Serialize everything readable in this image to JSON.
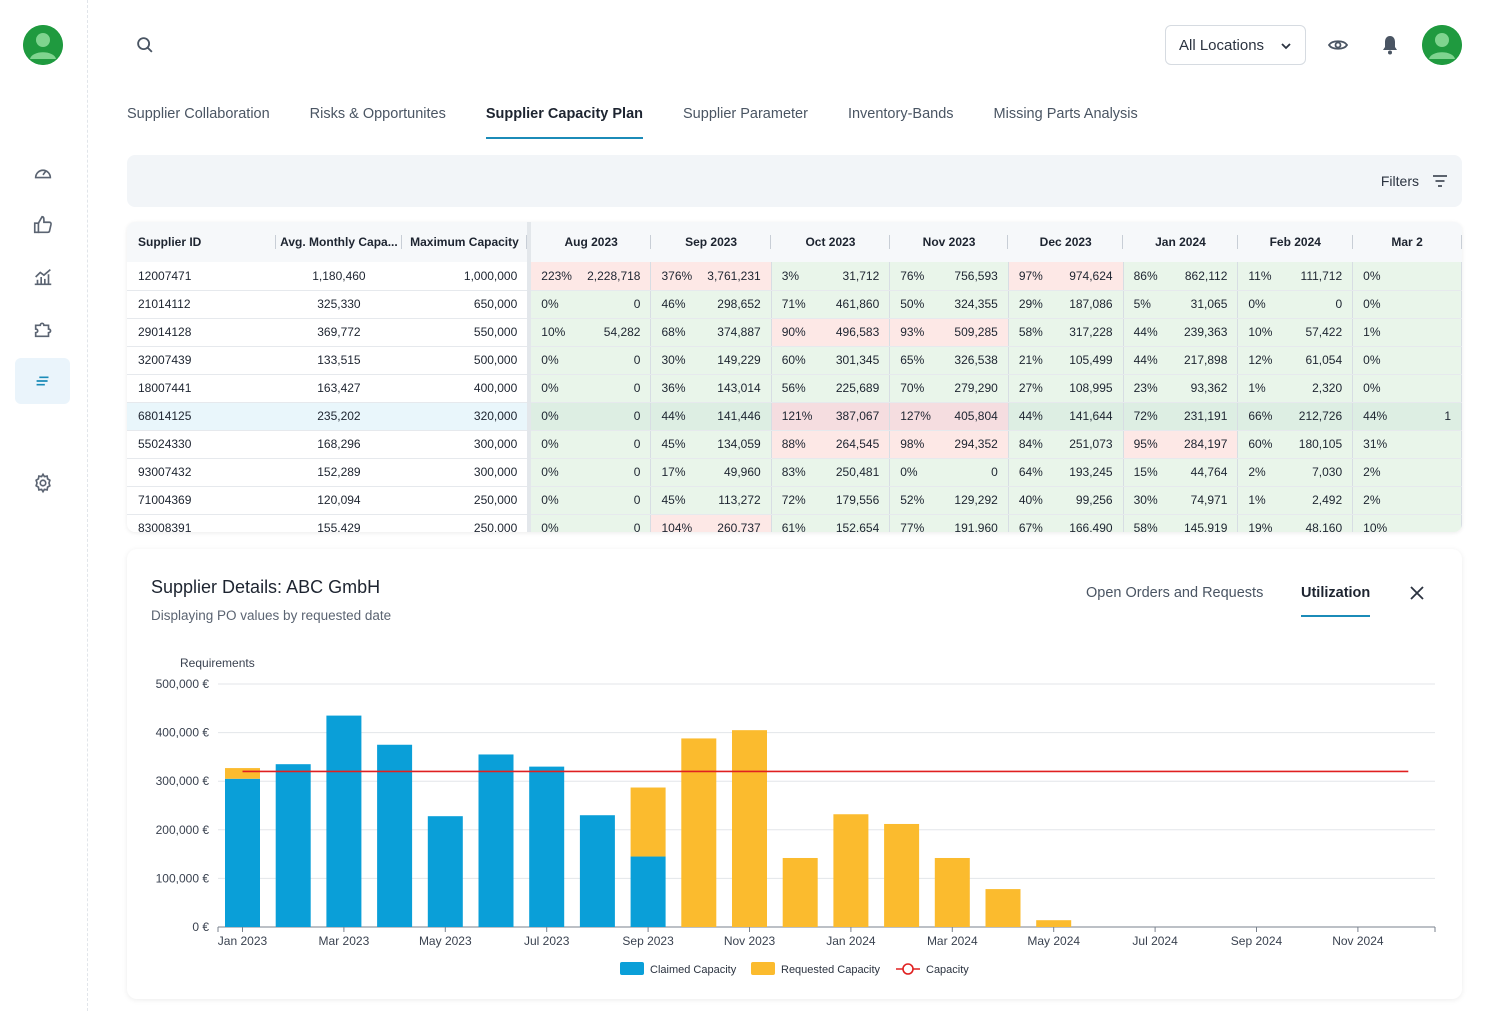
{
  "topbar": {
    "location_select": "All Locations"
  },
  "tabs": [
    {
      "label": "Supplier Collaboration",
      "active": false
    },
    {
      "label": "Risks & Opportunites",
      "active": false
    },
    {
      "label": "Supplier Capacity Plan",
      "active": true
    },
    {
      "label": "Supplier Parameter",
      "active": false
    },
    {
      "label": "Inventory-Bands",
      "active": false
    },
    {
      "label": "Missing Parts Analysis",
      "active": false
    }
  ],
  "filters": {
    "label": "Filters"
  },
  "grid": {
    "fixed_headers": [
      "Supplier ID",
      "Avg. Monthly Capa...",
      "Maximum Capacity"
    ],
    "month_headers": [
      "Aug 2023",
      "Sep 2023",
      "Oct 2023",
      "Nov 2023",
      "Dec 2023",
      "Jan 2024",
      "Feb 2024",
      "Mar 2"
    ],
    "rows": [
      {
        "id": "12007471",
        "avg": "1,180,460",
        "max": "1,000,000",
        "cells": [
          [
            "223%",
            "2,228,718"
          ],
          [
            "376%",
            "3,761,231"
          ],
          [
            "3%",
            "31,712"
          ],
          [
            "76%",
            "756,593"
          ],
          [
            "97%",
            "974,624"
          ],
          [
            "86%",
            "862,112"
          ],
          [
            "11%",
            "111,712"
          ],
          [
            "0%",
            ""
          ]
        ]
      },
      {
        "id": "21014112",
        "avg": "325,330",
        "max": "650,000",
        "cells": [
          [
            "0%",
            "0"
          ],
          [
            "46%",
            "298,652"
          ],
          [
            "71%",
            "461,860"
          ],
          [
            "50%",
            "324,355"
          ],
          [
            "29%",
            "187,086"
          ],
          [
            "5%",
            "31,065"
          ],
          [
            "0%",
            "0"
          ],
          [
            "0%",
            ""
          ]
        ]
      },
      {
        "id": "29014128",
        "avg": "369,772",
        "max": "550,000",
        "cells": [
          [
            "10%",
            "54,282"
          ],
          [
            "68%",
            "374,887"
          ],
          [
            "90%",
            "496,583"
          ],
          [
            "93%",
            "509,285"
          ],
          [
            "58%",
            "317,228"
          ],
          [
            "44%",
            "239,363"
          ],
          [
            "10%",
            "57,422"
          ],
          [
            "1%",
            ""
          ]
        ]
      },
      {
        "id": "32007439",
        "avg": "133,515",
        "max": "500,000",
        "cells": [
          [
            "0%",
            "0"
          ],
          [
            "30%",
            "149,229"
          ],
          [
            "60%",
            "301,345"
          ],
          [
            "65%",
            "326,538"
          ],
          [
            "21%",
            "105,499"
          ],
          [
            "44%",
            "217,898"
          ],
          [
            "12%",
            "61,054"
          ],
          [
            "0%",
            ""
          ]
        ]
      },
      {
        "id": "18007441",
        "avg": "163,427",
        "max": "400,000",
        "cells": [
          [
            "0%",
            "0"
          ],
          [
            "36%",
            "143,014"
          ],
          [
            "56%",
            "225,689"
          ],
          [
            "70%",
            "279,290"
          ],
          [
            "27%",
            "108,995"
          ],
          [
            "23%",
            "93,362"
          ],
          [
            "1%",
            "2,320"
          ],
          [
            "0%",
            ""
          ]
        ]
      },
      {
        "id": "68014125",
        "avg": "235,202",
        "max": "320,000",
        "cells": [
          [
            "0%",
            "0"
          ],
          [
            "44%",
            "141,446"
          ],
          [
            "121%",
            "387,067"
          ],
          [
            "127%",
            "405,804"
          ],
          [
            "44%",
            "141,644"
          ],
          [
            "72%",
            "231,191"
          ],
          [
            "66%",
            "212,726"
          ],
          [
            "44%",
            "1"
          ]
        ]
      },
      {
        "id": "55024330",
        "avg": "168,296",
        "max": "300,000",
        "cells": [
          [
            "0%",
            "0"
          ],
          [
            "45%",
            "134,059"
          ],
          [
            "88%",
            "264,545"
          ],
          [
            "98%",
            "294,352"
          ],
          [
            "84%",
            "251,073"
          ],
          [
            "95%",
            "284,197"
          ],
          [
            "60%",
            "180,105"
          ],
          [
            "31%",
            ""
          ]
        ]
      },
      {
        "id": "93007432",
        "avg": "152,289",
        "max": "300,000",
        "cells": [
          [
            "0%",
            "0"
          ],
          [
            "17%",
            "49,960"
          ],
          [
            "83%",
            "250,481"
          ],
          [
            "0%",
            "0"
          ],
          [
            "64%",
            "193,245"
          ],
          [
            "15%",
            "44,764"
          ],
          [
            "2%",
            "7,030"
          ],
          [
            "2%",
            ""
          ]
        ]
      },
      {
        "id": "71004369",
        "avg": "120,094",
        "max": "250,000",
        "cells": [
          [
            "0%",
            "0"
          ],
          [
            "45%",
            "113,272"
          ],
          [
            "72%",
            "179,556"
          ],
          [
            "52%",
            "129,292"
          ],
          [
            "40%",
            "99,256"
          ],
          [
            "30%",
            "74,971"
          ],
          [
            "1%",
            "2,492"
          ],
          [
            "2%",
            ""
          ]
        ]
      },
      {
        "id": "83008391",
        "avg": "155,429",
        "max": "250,000",
        "cells": [
          [
            "0%",
            "0"
          ],
          [
            "104%",
            "260,737"
          ],
          [
            "61%",
            "152,654"
          ],
          [
            "77%",
            "191,960"
          ],
          [
            "67%",
            "166,490"
          ],
          [
            "58%",
            "145,919"
          ],
          [
            "19%",
            "48,160"
          ],
          [
            "10%",
            ""
          ]
        ]
      }
    ]
  },
  "details": {
    "title": "Supplier Details: ABC GmbH",
    "subtitle": "Displaying PO values by requested date",
    "tabs": [
      "Open Orders and Requests",
      "Utilization"
    ],
    "active_tab": "Utilization"
  },
  "colors": {
    "claimed": "#0a9fd8",
    "requested": "#fbbb2e",
    "capacity": "#e02020",
    "accent": "#1b8bb8"
  },
  "chart_data": {
    "type": "bar",
    "stacked": true,
    "ylabel": "Requirements",
    "yticks": [
      "0 €",
      "100,000 €",
      "200,000 €",
      "300,000 €",
      "400,000 €",
      "500,000 €"
    ],
    "ylim": [
      0,
      500000
    ],
    "xtick_labels": [
      "Jan 2023",
      "Mar 2023",
      "May 2023",
      "Jul 2023",
      "Sep 2023",
      "Nov 2023",
      "Jan 2024",
      "Mar 2024",
      "May 2024",
      "Jul 2024",
      "Sep 2024",
      "Nov 2024"
    ],
    "categories": [
      "Jan 2023",
      "Feb 2023",
      "Mar 2023",
      "Apr 2023",
      "May 2023",
      "Jun 2023",
      "Jul 2023",
      "Aug 2023",
      "Sep 2023",
      "Oct 2023",
      "Nov 2023",
      "Dec 2023",
      "Jan 2024",
      "Feb 2024",
      "Mar 2024",
      "Apr 2024",
      "May 2024",
      "Jun 2024",
      "Jul 2024",
      "Aug 2024",
      "Sep 2024",
      "Oct 2024",
      "Nov 2024",
      "Dec 2024"
    ],
    "series": [
      {
        "name": "Claimed Capacity",
        "values": [
          305000,
          335000,
          435000,
          375000,
          228000,
          355000,
          330000,
          230000,
          145000,
          0,
          0,
          0,
          0,
          0,
          0,
          0,
          0,
          0,
          0,
          0,
          0,
          0,
          0,
          0
        ]
      },
      {
        "name": "Requested Capacity",
        "values": [
          22000,
          0,
          0,
          0,
          0,
          0,
          0,
          0,
          142000,
          388000,
          405000,
          142000,
          232000,
          212000,
          142000,
          78000,
          14000,
          0,
          0,
          0,
          0,
          0,
          0,
          0
        ]
      }
    ],
    "capacity_line": {
      "name": "Capacity",
      "value": 320000
    },
    "legend_position": "bottom",
    "grid": true
  }
}
